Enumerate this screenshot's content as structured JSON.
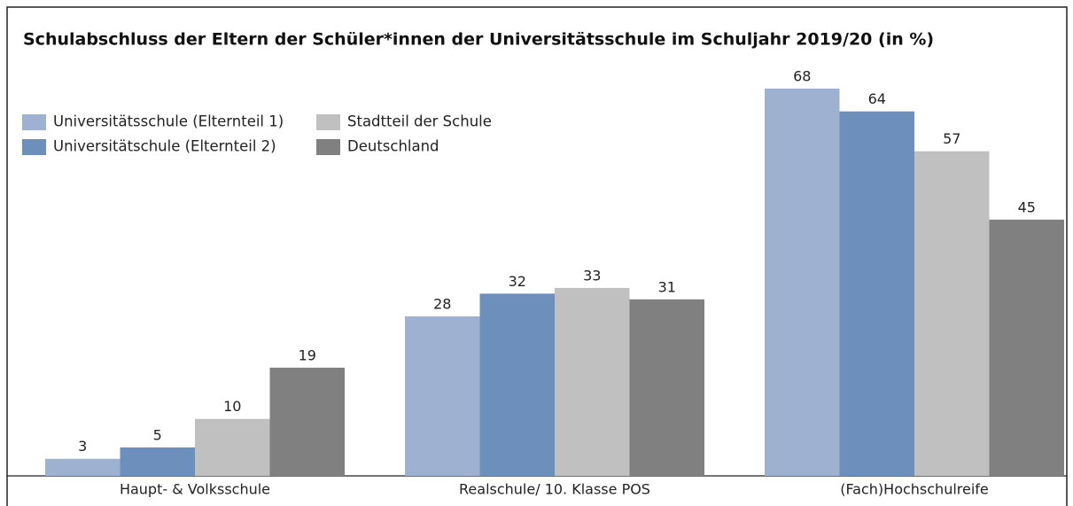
{
  "chart_data": {
    "type": "bar",
    "title": "Schulabschluss der Eltern der Schüler*innen der Universitätsschule im Schuljahr 2019/20 (in %)",
    "categories": [
      "Haupt- & Volksschule",
      "Realschule/ 10. Klasse POS",
      "(Fach)Hochschulreife"
    ],
    "series": [
      {
        "name": "Universitätsschule (Elternteil 1)",
        "color": "#9eb1d0",
        "values": [
          3,
          28,
          68
        ]
      },
      {
        "name": "Universitätschule (Elternteil 2)",
        "color": "#6d8fbb",
        "values": [
          5,
          32,
          64
        ]
      },
      {
        "name": "Stadtteil der Schule",
        "color": "#c0c0c0",
        "values": [
          10,
          33,
          57
        ]
      },
      {
        "name": "Deutschland",
        "color": "#808080",
        "values": [
          19,
          31,
          45
        ]
      }
    ]
  }
}
